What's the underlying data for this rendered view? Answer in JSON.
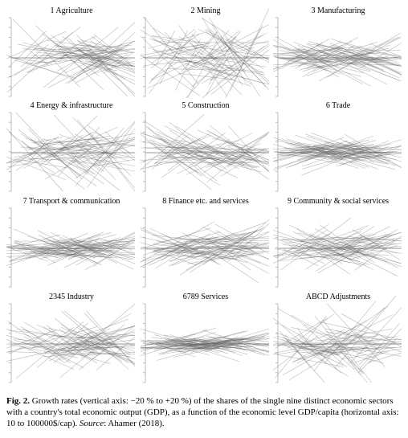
{
  "figure": {
    "panels": [
      {
        "title": "1 Agriculture"
      },
      {
        "title": "2 Mining"
      },
      {
        "title": "3 Manufacturing"
      },
      {
        "title": "4 Energy & infrastructure"
      },
      {
        "title": "5 Construction"
      },
      {
        "title": "6 Trade"
      },
      {
        "title": "7 Transport & communication"
      },
      {
        "title": "8 Finance etc. and services"
      },
      {
        "title": "9 Community & social services"
      },
      {
        "title": "2345 Industry"
      },
      {
        "title": "6789 Services"
      },
      {
        "title": "ABCD Adjustments"
      }
    ],
    "caption": {
      "label": "Fig. 2.",
      "text": "Growth rates (vertical axis: −20 % to +20 %) of the shares of the single nine distinct economic sectors with a country's total economic output (GDP), as a function of the economic level GDP/capita (horizontal axis: 10 to 100000$/cap).",
      "source_label": "Source",
      "source_text": ": Ahamer (2018)."
    }
  }
}
